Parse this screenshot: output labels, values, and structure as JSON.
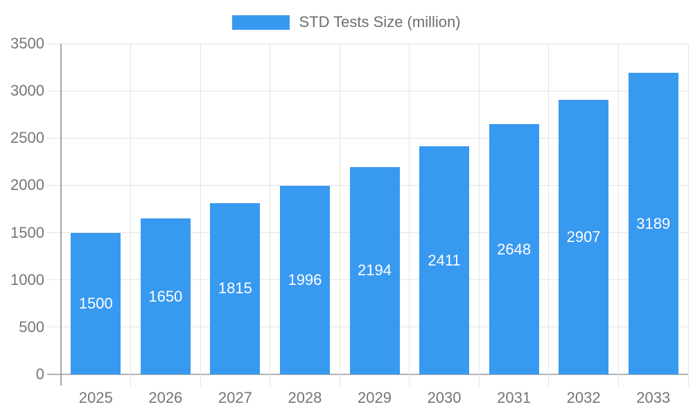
{
  "legend": {
    "label": "STD Tests Size (million)"
  },
  "chart_data": {
    "type": "bar",
    "title": "STD Tests Size (million)",
    "series_name": "STD Tests Size (million)",
    "categories": [
      "2025",
      "2026",
      "2027",
      "2028",
      "2029",
      "2030",
      "2031",
      "2032",
      "2033"
    ],
    "values": [
      1500,
      1650,
      1815,
      1996,
      2194,
      2411,
      2648,
      2907,
      3189
    ],
    "xlabel": "",
    "ylabel": "",
    "ylim": [
      0,
      3500
    ],
    "ytick_step": 500,
    "yticks": [
      0,
      500,
      1000,
      1500,
      2000,
      2500,
      3000,
      3500
    ],
    "grid": true,
    "legend_position": "top-center",
    "value_label_position": "inside-center",
    "colors": {
      "bar": "#3899F0",
      "value_label": "#FFFFFF",
      "axis_text": "#757575",
      "legend_text": "#6E6E6E",
      "grid": "#E4E4E4",
      "axis_line": "#A6A6A6",
      "baseline": "#B3B3B3",
      "background": "#FFFFFF"
    }
  }
}
